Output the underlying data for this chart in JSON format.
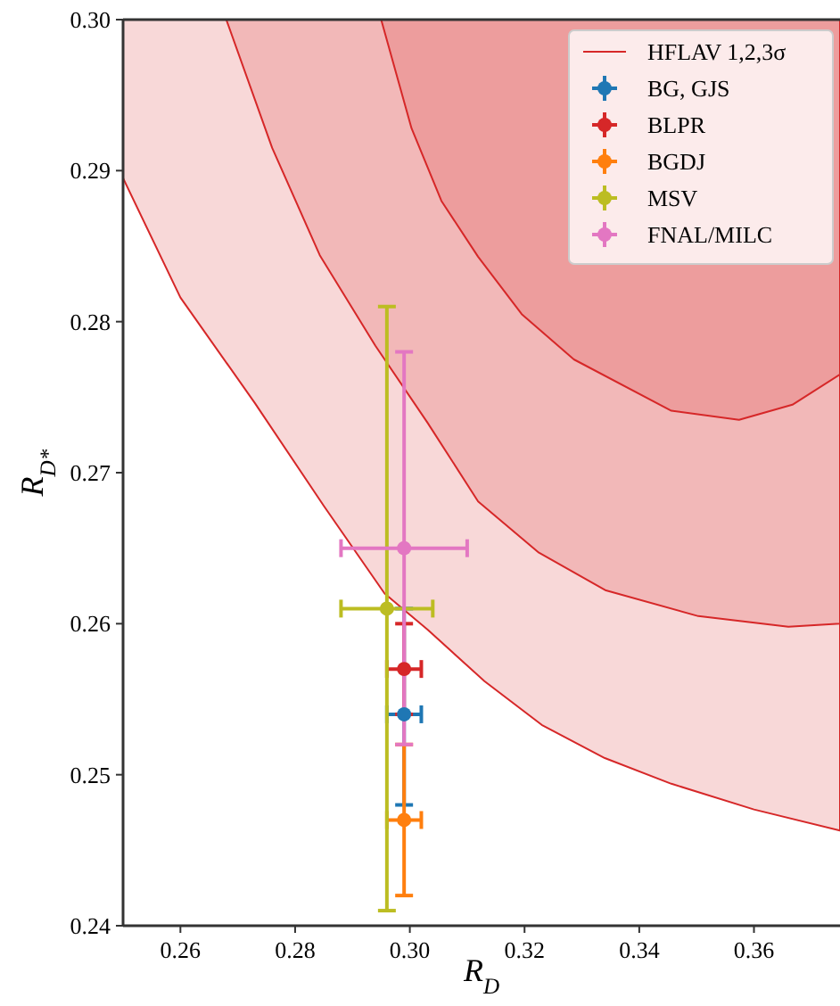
{
  "chart_data": {
    "type": "scatter",
    "xlabel": "R$_{D}$",
    "ylabel": "R$_{D*}$",
    "xlim": [
      0.25,
      0.375
    ],
    "xticks": [
      0.26,
      0.28,
      {
        "value": 0.3,
        "label": "0.30"
      },
      0.32,
      0.34,
      0.36
    ],
    "ylim": [
      0.24,
      0.3
    ],
    "yticks": [
      0.24,
      0.25,
      0.26,
      0.27,
      0.28,
      0.29,
      {
        "value": 0.3,
        "label": "0.30"
      }
    ],
    "grid": false,
    "legend": "top right",
    "series": [
      {
        "type": "area",
        "name": "HFLAV 1,2,3σ",
        "color": "#d62728",
        "x": [
          0.25,
          0.26,
          0.273,
          0.285,
          0.2956,
          0.3031,
          0.313,
          0.323,
          0.334,
          0.3456,
          0.36,
          0.375,
          0.375,
          0.25
        ],
        "values": [
          0.2895,
          0.2816,
          0.2746,
          0.2678,
          0.262,
          0.2596,
          0.2562,
          0.2533,
          0.2511,
          0.2494,
          0.2477,
          0.2463,
          0.3,
          0.3
        ]
      },
      {
        "type": "area",
        "color": "#d62728",
        "x": [
          0.268,
          0.276,
          0.2843,
          0.294,
          0.3031,
          0.3119,
          0.3225,
          0.3342,
          0.3503,
          0.366,
          0.375,
          0.375
        ],
        "values": [
          0.3,
          0.2915,
          0.2844,
          0.2784,
          0.2733,
          0.2681,
          0.2647,
          0.2622,
          0.2605,
          0.2598,
          0.26,
          0.3
        ]
      },
      {
        "type": "area",
        "color": "#d62728",
        "x": [
          0.295,
          0.3003,
          0.3055,
          0.3119,
          0.3195,
          0.3286,
          0.3456,
          0.3574,
          0.3667,
          0.375,
          0.375
        ],
        "values": [
          0.3,
          0.2928,
          0.288,
          0.2843,
          0.2805,
          0.2775,
          0.2741,
          0.2735,
          0.2745,
          0.2765,
          0.3
        ]
      },
      {
        "name": "BG, GJS",
        "marker": "circle",
        "color": "#1f77b4",
        "x": [
          0.299
        ],
        "values": [
          0.254
        ],
        "errors": [
          [
            0.248,
            0.261
          ]
        ],
        "xerrors": [
          [
            0.296,
            0.302
          ]
        ]
      },
      {
        "name": "BLPR",
        "marker": "circle",
        "color": "#d62728",
        "x": [
          0.299
        ],
        "values": [
          0.257
        ],
        "errors": [
          0.003
        ],
        "xerrors": [
          0.003
        ]
      },
      {
        "name": "BGDJ",
        "marker": "circle",
        "color": "#ff7f0e",
        "x": [
          0.299
        ],
        "values": [
          0.247
        ],
        "errors": [
          0.005
        ],
        "xerrors": [
          0.003
        ]
      },
      {
        "name": "MSV",
        "marker": "circle",
        "color": "#bcbd22",
        "x": [
          0.296
        ],
        "values": [
          0.261
        ],
        "errors": [
          0.02
        ],
        "xerrors": [
          0.008
        ]
      },
      {
        "name": "FNAL/MILC",
        "marker": "circle",
        "color": "#e377c2",
        "x": [
          0.299
        ],
        "values": [
          0.265
        ],
        "errors": [
          0.013
        ],
        "xerrors": [
          [
            0.288,
            0.31
          ]
        ]
      }
    ]
  }
}
